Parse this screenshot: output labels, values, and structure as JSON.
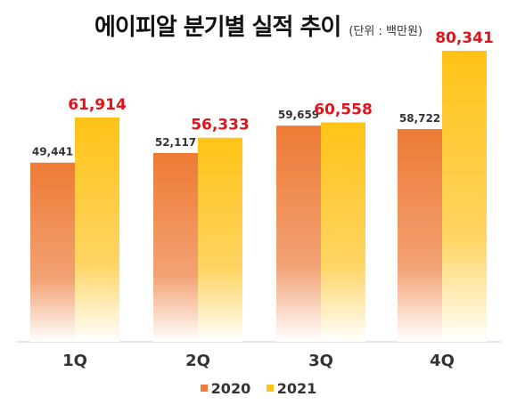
{
  "chart_data": {
    "type": "bar",
    "title": "에이피알 분기별 실적 추이",
    "unit": "(단위 : 백만원)",
    "categories": [
      "1Q",
      "2Q",
      "3Q",
      "4Q"
    ],
    "series": [
      {
        "name": "2020",
        "values": [
          49441,
          52117,
          59659,
          58722
        ],
        "labels": [
          "49,441",
          "52,117",
          "59,659",
          "58,722"
        ],
        "color": "#f07b3a"
      },
      {
        "name": "2021",
        "values": [
          61914,
          56333,
          60558,
          80341
        ],
        "labels": [
          "61,914",
          "56,333",
          "60,558",
          "80,341"
        ],
        "color": "#ffc317"
      }
    ],
    "value_label_color_2021": "#e0141c",
    "ylim": [
      0,
      85000
    ],
    "grid": false,
    "legend_position": "bottom"
  }
}
